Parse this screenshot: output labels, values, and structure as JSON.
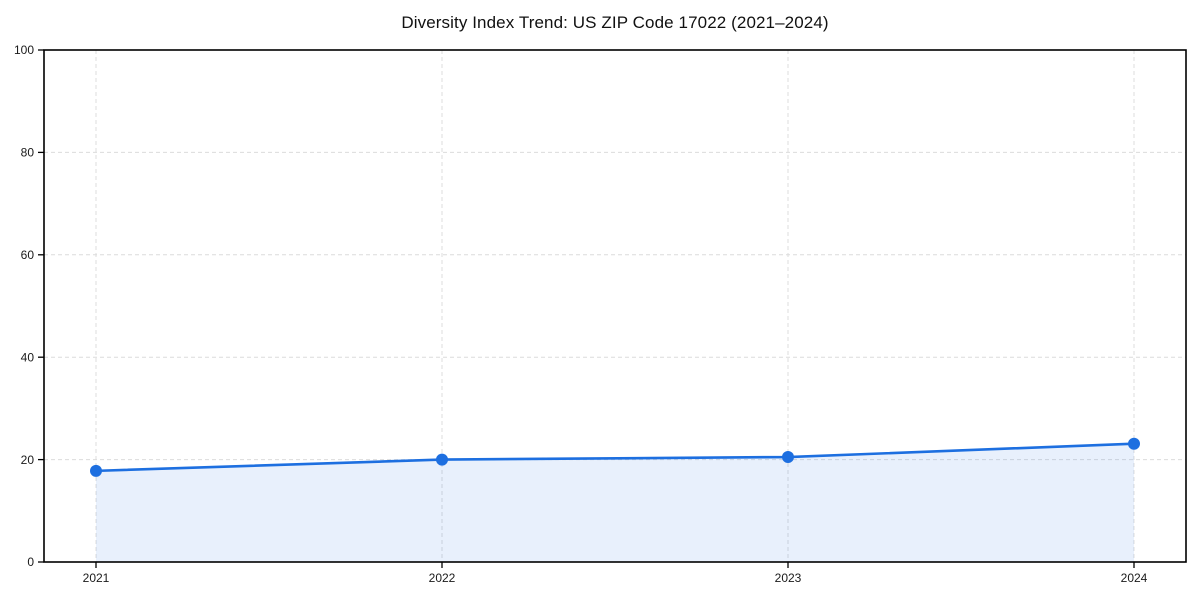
{
  "chart_data": {
    "type": "line",
    "title": "Diversity Index Trend: US ZIP Code 17022 (2021–2024)",
    "categories": [
      "2021",
      "2022",
      "2023",
      "2024"
    ],
    "series": [
      {
        "name": "Diversity Index",
        "values": [
          17.8,
          20.0,
          20.5,
          23.1
        ]
      }
    ],
    "xlabel": "",
    "ylabel": "",
    "ylim": [
      0,
      100
    ],
    "yticks": [
      0,
      20,
      40,
      60,
      80,
      100
    ],
    "grid": true,
    "grid_style": "dashed",
    "legend": "none",
    "area_fill": true,
    "colors": {
      "line": "#1d6fe0",
      "marker": "#1d6fe0",
      "area_fill": "rgba(29,111,224,0.10)",
      "grid": "#dcdcdc",
      "axis": "#000000",
      "text": "#1a1a1a",
      "background": "#ffffff"
    }
  }
}
